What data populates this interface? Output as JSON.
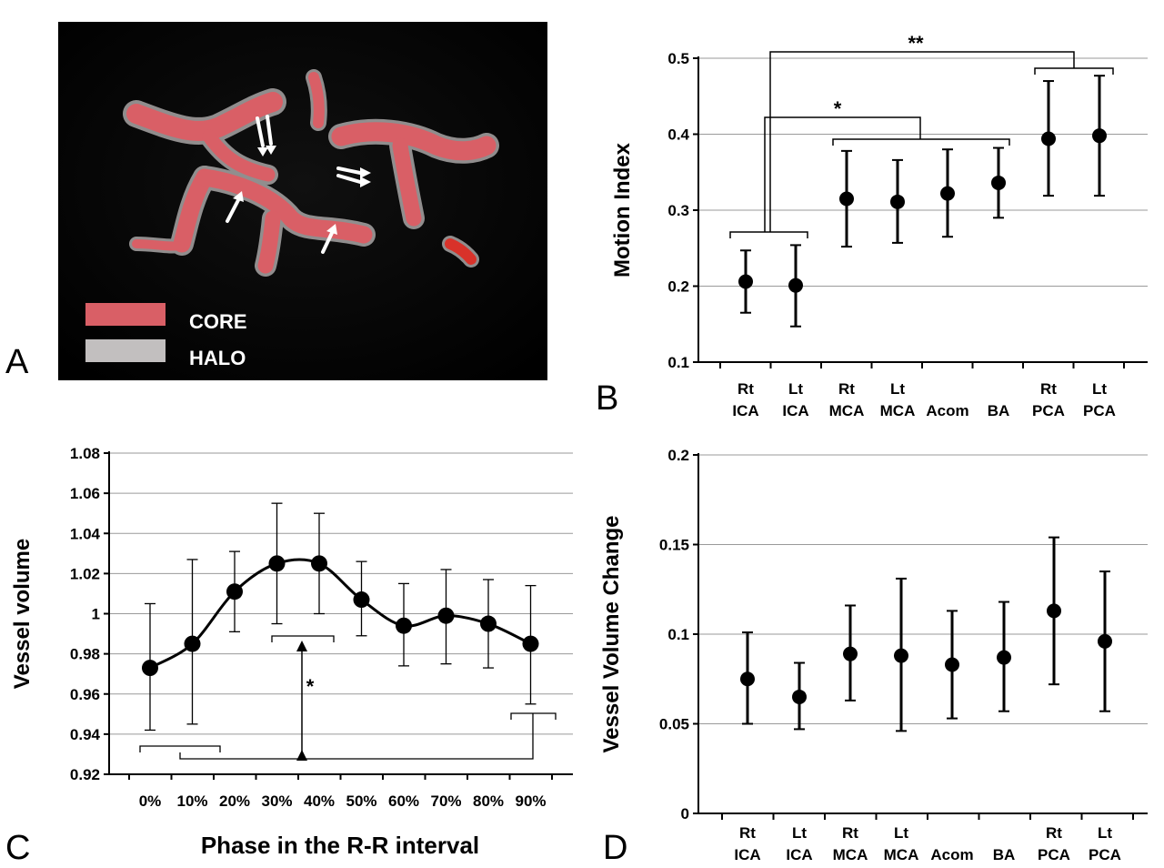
{
  "panel_letters": [
    "A",
    "B",
    "C",
    "D"
  ],
  "panelA": {
    "legend": [
      {
        "label": "CORE",
        "color": "#d95f66"
      },
      {
        "label": "HALO",
        "color": "#c2bfbf"
      }
    ]
  },
  "chart_data": [
    {
      "panel": "B",
      "type": "scatter",
      "ylabel": "Motion Index",
      "xlabel": "",
      "ylim": [
        0.1,
        0.5
      ],
      "yticks": [
        "0.1",
        "0.2",
        "0.3",
        "0.4",
        "0.5"
      ],
      "grid": true,
      "categories": [
        {
          "top": "Rt",
          "bottom": "ICA"
        },
        {
          "top": "Lt",
          "bottom": "ICA"
        },
        {
          "top": "Rt",
          "bottom": "MCA"
        },
        {
          "top": "Lt",
          "bottom": "MCA"
        },
        {
          "top": "",
          "bottom": "Acom"
        },
        {
          "top": "",
          "bottom": "BA"
        },
        {
          "top": "Rt",
          "bottom": "PCA"
        },
        {
          "top": "Lt",
          "bottom": "PCA"
        }
      ],
      "values": [
        0.206,
        0.201,
        0.315,
        0.311,
        0.322,
        0.336,
        0.394,
        0.398
      ],
      "error_low": [
        0.165,
        0.147,
        0.252,
        0.257,
        0.265,
        0.29,
        0.319,
        0.319
      ],
      "error_high": [
        0.247,
        0.254,
        0.378,
        0.366,
        0.38,
        0.382,
        0.47,
        0.477
      ],
      "annotations": [
        "*",
        "**"
      ]
    },
    {
      "panel": "C",
      "type": "line",
      "xlabel": "Phase in the R-R interval",
      "ylabel": "Vessel volume",
      "ylim": [
        0.92,
        1.08
      ],
      "yticks": [
        "0.92",
        "0.94",
        "0.96",
        "0.98",
        "1",
        "1.02",
        "1.04",
        "1.06",
        "1.08"
      ],
      "grid": true,
      "categories": [
        "0%",
        "10%",
        "20%",
        "30%",
        "40%",
        "50%",
        "60%",
        "70%",
        "80%",
        "90%"
      ],
      "values": [
        0.973,
        0.985,
        1.011,
        1.025,
        1.025,
        1.007,
        0.994,
        0.999,
        0.995,
        0.985
      ],
      "error_low": [
        0.942,
        0.945,
        0.991,
        0.995,
        1.0,
        0.989,
        0.974,
        0.975,
        0.973,
        0.955
      ],
      "error_high": [
        1.005,
        1.027,
        1.031,
        1.055,
        1.05,
        1.026,
        1.015,
        1.022,
        1.017,
        1.014
      ],
      "annotations": [
        "*"
      ]
    },
    {
      "panel": "D",
      "type": "scatter",
      "ylabel": "Vessel Volume Change",
      "xlabel": "",
      "ylim": [
        0,
        0.2
      ],
      "yticks": [
        "0",
        "0.05",
        "0.1",
        "0.15",
        "0.2"
      ],
      "grid": true,
      "categories": [
        {
          "top": "Rt",
          "bottom": "ICA"
        },
        {
          "top": "Lt",
          "bottom": "ICA"
        },
        {
          "top": "Rt",
          "bottom": "MCA"
        },
        {
          "top": "Lt",
          "bottom": "MCA"
        },
        {
          "top": "",
          "bottom": "Acom"
        },
        {
          "top": "",
          "bottom": "BA"
        },
        {
          "top": "Rt",
          "bottom": "PCA"
        },
        {
          "top": "Lt",
          "bottom": "PCA"
        }
      ],
      "values": [
        0.075,
        0.065,
        0.089,
        0.088,
        0.083,
        0.087,
        0.113,
        0.096
      ],
      "error_low": [
        0.05,
        0.047,
        0.063,
        0.046,
        0.053,
        0.057,
        0.072,
        0.057
      ],
      "error_high": [
        0.101,
        0.084,
        0.116,
        0.131,
        0.113,
        0.118,
        0.154,
        0.135
      ]
    }
  ]
}
